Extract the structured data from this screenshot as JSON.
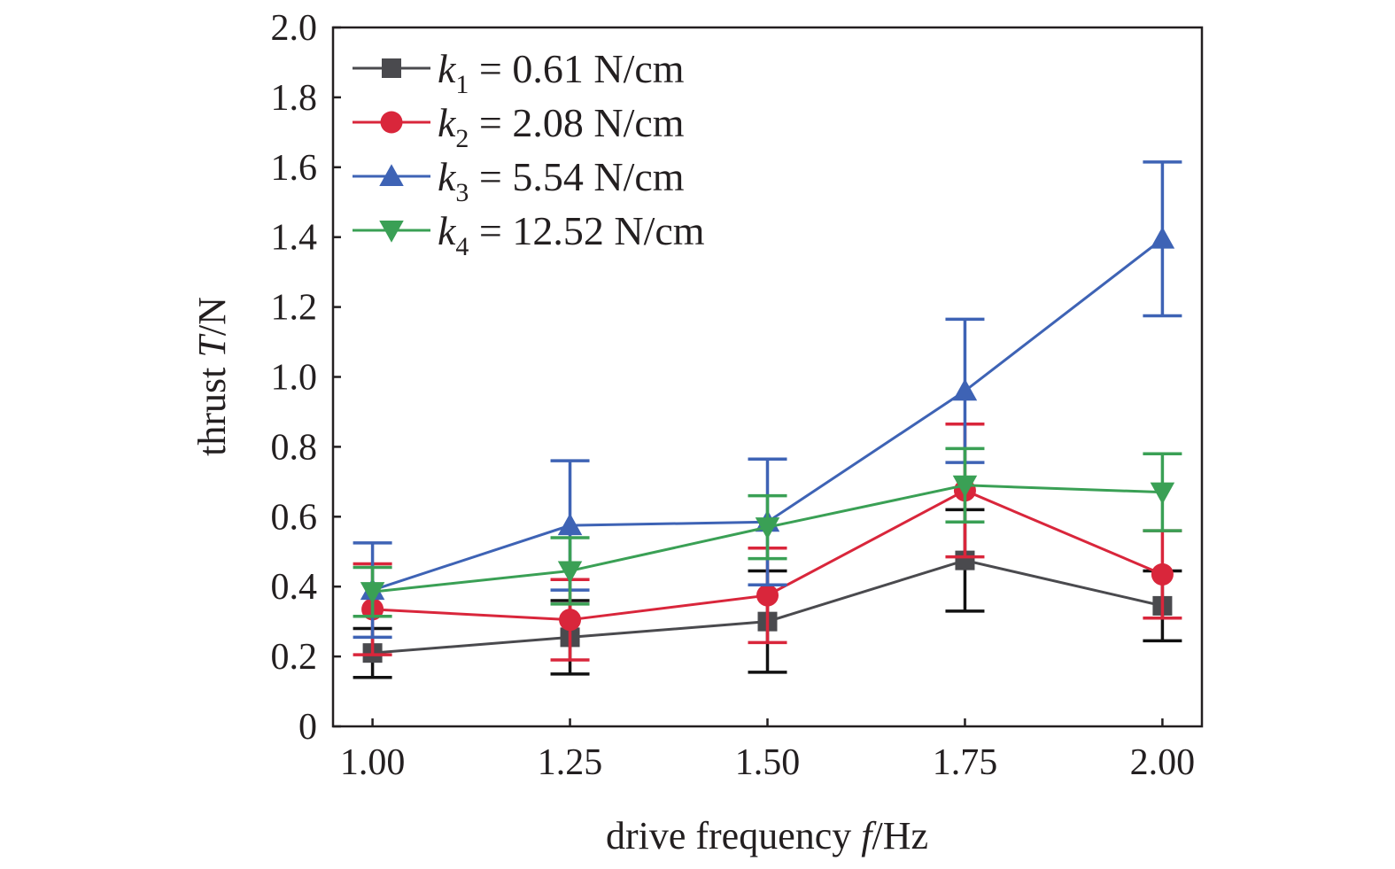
{
  "chart_data": {
    "type": "line",
    "xlabel": {
      "prefix": "drive frequency ",
      "var": "f",
      "unit": "/Hz"
    },
    "ylabel": {
      "prefix": "thrust ",
      "var": "T",
      "unit": "/N"
    },
    "x": [
      1.0,
      1.25,
      1.5,
      1.75,
      2.0
    ],
    "x_tick_labels": [
      "1.00",
      "1.25",
      "1.50",
      "1.75",
      "2.00"
    ],
    "xlim": [
      0.95,
      2.05
    ],
    "ylim": [
      0,
      2.0
    ],
    "y_ticks": [
      0,
      0.2,
      0.4,
      0.6,
      0.8,
      1.0,
      1.2,
      1.4,
      1.6,
      1.8,
      2.0
    ],
    "y_tick_labels": [
      "0",
      "0.2",
      "0.4",
      "0.6",
      "0.8",
      "1.0",
      "1.2",
      "1.4",
      "1.6",
      "1.8",
      "2.0"
    ],
    "grid": false,
    "legend_position": "top-left",
    "series": [
      {
        "var": "k",
        "sub": "1",
        "value_text": " = 0.61 N/cm",
        "color": "#4a4a4e",
        "marker": "square",
        "values": [
          0.21,
          0.255,
          0.3,
          0.475,
          0.345
        ],
        "error": [
          0.07,
          0.105,
          0.145,
          0.145,
          0.1
        ]
      },
      {
        "var": "k",
        "sub": "2",
        "value_text": " = 2.08 N/cm",
        "color": "#d9263b",
        "marker": "circle",
        "values": [
          0.335,
          0.305,
          0.375,
          0.675,
          0.435
        ],
        "error": [
          0.13,
          0.115,
          0.135,
          0.19,
          0.125
        ]
      },
      {
        "var": "k",
        "sub": "3",
        "value_text": " = 5.54 N/cm",
        "color": "#3e63b5",
        "marker": "triangle-up",
        "values": [
          0.39,
          0.575,
          0.585,
          0.96,
          1.395
        ],
        "error": [
          0.135,
          0.185,
          0.18,
          0.205,
          0.22
        ]
      },
      {
        "var": "k",
        "sub": "4",
        "value_text": " = 12.52 N/cm",
        "color": "#3aa055",
        "marker": "triangle-down",
        "values": [
          0.385,
          0.445,
          0.57,
          0.69,
          0.67
        ],
        "error": [
          0.07,
          0.095,
          0.09,
          0.105,
          0.11
        ]
      }
    ]
  }
}
